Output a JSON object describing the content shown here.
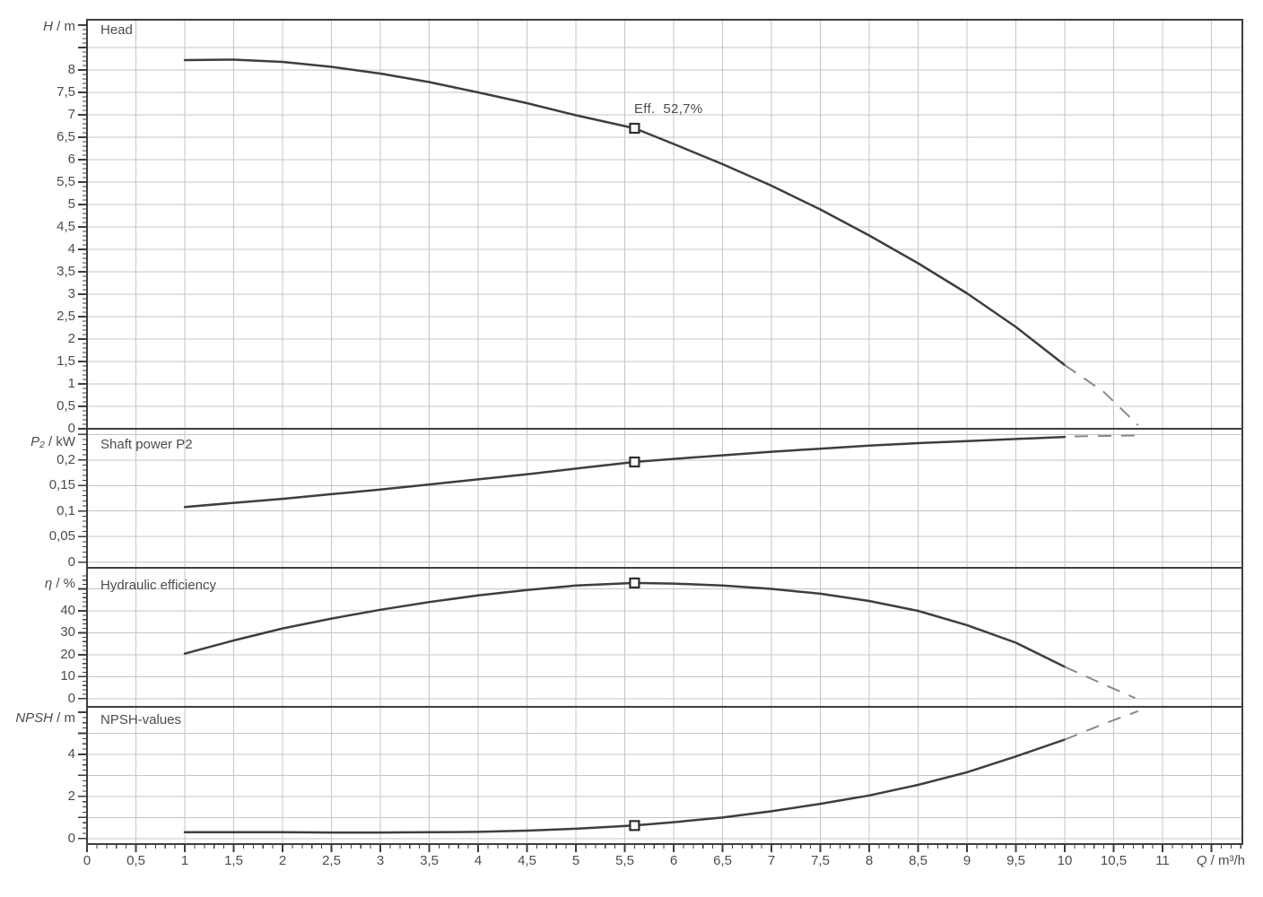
{
  "chart_data": {
    "type": "line",
    "x_sym": "Q",
    "x_unit": " / m³/h",
    "xlim": [
      0,
      11.82
    ],
    "grid_on": true,
    "duty_annotation": "Eff.  52,7%",
    "duty_q": 5.6,
    "x_tick_labels": [
      {
        "q": 0,
        "label": "0"
      },
      {
        "q": 0.5,
        "label": "0,5"
      },
      {
        "q": 1,
        "label": "1"
      },
      {
        "q": 1.5,
        "label": "1,5"
      },
      {
        "q": 2,
        "label": "2"
      },
      {
        "q": 2.5,
        "label": "2,5"
      },
      {
        "q": 3,
        "label": "3"
      },
      {
        "q": 3.5,
        "label": "3,5"
      },
      {
        "q": 4,
        "label": "4"
      },
      {
        "q": 4.5,
        "label": "4,5"
      },
      {
        "q": 5,
        "label": "5"
      },
      {
        "q": 5.5,
        "label": "5,5"
      },
      {
        "q": 6,
        "label": "6"
      },
      {
        "q": 6.5,
        "label": "6,5"
      },
      {
        "q": 7,
        "label": "7"
      },
      {
        "q": 7.5,
        "label": "7,5"
      },
      {
        "q": 8,
        "label": "8"
      },
      {
        "q": 8.5,
        "label": "8,5"
      },
      {
        "q": 9,
        "label": "9"
      },
      {
        "q": 9.5,
        "label": "9,5"
      },
      {
        "q": 10,
        "label": "10"
      },
      {
        "q": 10.5,
        "label": "10,5"
      },
      {
        "q": 11,
        "label": "11"
      }
    ],
    "panels": [
      {
        "id": "head",
        "title": "Head",
        "axis_sym": "H",
        "axis_unit": " / m",
        "ylim": [
          0,
          9.12
        ],
        "grid": {
          "min": 0.5,
          "max": 8.5,
          "step": 0.5
        },
        "ruler": {
          "minor": 0.1,
          "major": 0.5,
          "max": 9.0
        },
        "yticks": [
          {
            "v": 8,
            "label": "8"
          },
          {
            "v": 7.5,
            "label": "7,5"
          },
          {
            "v": 7,
            "label": "7"
          },
          {
            "v": 6.5,
            "label": "6,5"
          },
          {
            "v": 6,
            "label": "6"
          },
          {
            "v": 5.5,
            "label": "5,5"
          },
          {
            "v": 5,
            "label": "5"
          },
          {
            "v": 4.5,
            "label": "4,5"
          },
          {
            "v": 4,
            "label": "4"
          },
          {
            "v": 3.5,
            "label": "3,5"
          },
          {
            "v": 3,
            "label": "3"
          },
          {
            "v": 2.5,
            "label": "2,5"
          },
          {
            "v": 2,
            "label": "2"
          },
          {
            "v": 1.5,
            "label": "1,5"
          },
          {
            "v": 1,
            "label": "1"
          },
          {
            "v": 0.5,
            "label": "0,5"
          },
          {
            "v": 0,
            "label": "0"
          }
        ],
        "duty_value": 6.7,
        "solid": [
          [
            1,
            8.22
          ],
          [
            1.5,
            8.23
          ],
          [
            2,
            8.18
          ],
          [
            2.5,
            8.07
          ],
          [
            3,
            7.92
          ],
          [
            3.5,
            7.73
          ],
          [
            4,
            7.5
          ],
          [
            4.5,
            7.26
          ],
          [
            5,
            6.99
          ],
          [
            5.6,
            6.7
          ],
          [
            6,
            6.35
          ],
          [
            6.5,
            5.9
          ],
          [
            7,
            5.42
          ],
          [
            7.5,
            4.89
          ],
          [
            8,
            4.31
          ],
          [
            8.5,
            3.69
          ],
          [
            9,
            3.02
          ],
          [
            9.5,
            2.27
          ],
          [
            10,
            1.42
          ]
        ],
        "dashed": [
          [
            10,
            1.42
          ],
          [
            10.4,
            0.82
          ],
          [
            10.75,
            0.08
          ]
        ]
      },
      {
        "id": "power",
        "title": "Shaft power P2",
        "axis_sym": "P₂",
        "axis_unit": " / kW",
        "ylim": [
          -0.011,
          0.261
        ],
        "grid": {
          "min": 0,
          "max": 0.25,
          "step": 0.05
        },
        "ruler": {
          "minor": 0.01,
          "major": 0.05,
          "max": 0.25
        },
        "yticks": [
          {
            "v": 0.2,
            "label": "0,2"
          },
          {
            "v": 0.15,
            "label": "0,15"
          },
          {
            "v": 0.1,
            "label": "0,1"
          },
          {
            "v": 0.05,
            "label": "0,05"
          },
          {
            "v": 0,
            "label": "0"
          }
        ],
        "duty_value": 0.196,
        "solid": [
          [
            1,
            0.108
          ],
          [
            1.5,
            0.116
          ],
          [
            2,
            0.124
          ],
          [
            2.5,
            0.133
          ],
          [
            3,
            0.142
          ],
          [
            3.5,
            0.152
          ],
          [
            4,
            0.162
          ],
          [
            4.5,
            0.172
          ],
          [
            5,
            0.183
          ],
          [
            5.6,
            0.196
          ],
          [
            6,
            0.202
          ],
          [
            6.5,
            0.209
          ],
          [
            7,
            0.216
          ],
          [
            7.5,
            0.222
          ],
          [
            8,
            0.228
          ],
          [
            8.5,
            0.233
          ],
          [
            9,
            0.237
          ],
          [
            9.5,
            0.241
          ],
          [
            10,
            0.245
          ]
        ],
        "dashed": [
          [
            10.1,
            0.246
          ],
          [
            10.78,
            0.248
          ]
        ]
      },
      {
        "id": "eff",
        "title": "Hydraulic efficiency",
        "axis_sym": "η",
        "axis_unit": " / %",
        "ylim": [
          -3.3,
          59.6
        ],
        "grid": {
          "min": 0,
          "max": 50,
          "step": 10
        },
        "ruler": {
          "minor": 2,
          "major": 10,
          "max": 56
        },
        "yticks": [
          {
            "v": 40,
            "label": "40"
          },
          {
            "v": 30,
            "label": "30"
          },
          {
            "v": 20,
            "label": "20"
          },
          {
            "v": 10,
            "label": "10"
          },
          {
            "v": 0,
            "label": "0"
          }
        ],
        "duty_value": 52.7,
        "solid": [
          [
            1,
            20.5
          ],
          [
            1.5,
            26.5
          ],
          [
            2,
            32
          ],
          [
            2.5,
            36.5
          ],
          [
            3,
            40.5
          ],
          [
            3.5,
            44
          ],
          [
            4,
            47
          ],
          [
            4.5,
            49.5
          ],
          [
            5,
            51.5
          ],
          [
            5.6,
            52.7
          ],
          [
            6,
            52.4
          ],
          [
            6.5,
            51.5
          ],
          [
            7,
            50
          ],
          [
            7.5,
            47.8
          ],
          [
            8,
            44.5
          ],
          [
            8.5,
            40
          ],
          [
            9,
            33.5
          ],
          [
            9.5,
            25.5
          ],
          [
            10,
            14.5
          ]
        ],
        "dashed": [
          [
            10,
            14.5
          ],
          [
            10.35,
            7.5
          ],
          [
            10.72,
            0.3
          ]
        ]
      },
      {
        "id": "npsh",
        "title": "NPSH-values",
        "axis_sym": "NPSH",
        "axis_unit": " / m",
        "ylim": [
          -0.26,
          6.17
        ],
        "grid": {
          "min": 0,
          "max": 5,
          "step": 1
        },
        "ruler": {
          "minor": 0.25,
          "major": 1,
          "max": 6
        },
        "yticks": [
          {
            "v": 4,
            "label": "4"
          },
          {
            "v": 2,
            "label": "2"
          },
          {
            "v": 0,
            "label": "0"
          }
        ],
        "duty_value": 0.62,
        "solid": [
          [
            1,
            0.3
          ],
          [
            1.5,
            0.3
          ],
          [
            2,
            0.3
          ],
          [
            2.5,
            0.29
          ],
          [
            3,
            0.29
          ],
          [
            3.5,
            0.3
          ],
          [
            4,
            0.32
          ],
          [
            4.5,
            0.38
          ],
          [
            5,
            0.47
          ],
          [
            5.6,
            0.62
          ],
          [
            6,
            0.78
          ],
          [
            6.5,
            1.0
          ],
          [
            7,
            1.3
          ],
          [
            7.5,
            1.65
          ],
          [
            8,
            2.05
          ],
          [
            8.5,
            2.55
          ],
          [
            9,
            3.15
          ],
          [
            9.5,
            3.9
          ],
          [
            10,
            4.7
          ]
        ],
        "dashed": [
          [
            10,
            4.7
          ],
          [
            10.4,
            5.45
          ],
          [
            10.75,
            6.05
          ]
        ]
      }
    ],
    "colors": {
      "curve": "#3e3e3e",
      "dashed": "#8a8a8a",
      "grid": "#c5c5c5",
      "frame": "#3e3e3e",
      "text": "#4c4c4c",
      "marker_fill": "#ffffff"
    }
  }
}
